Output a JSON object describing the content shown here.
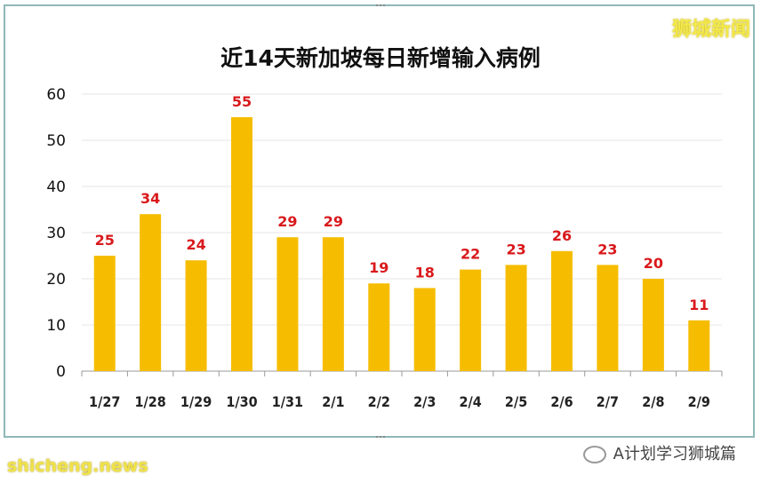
{
  "watermark_top": "狮城新闻",
  "watermark_bottom": "shicheng.news",
  "footer_source": "A计划学习狮城篇",
  "icons": {
    "source_icon": "wechat-icon"
  },
  "colors": {
    "bar": "#f6bd00",
    "data_label": "#d9191c",
    "frame": "#8fb8b8"
  },
  "chart_data": {
    "type": "bar",
    "title": "近14天新加坡每日新增输入病例",
    "categories": [
      "1/27",
      "1/28",
      "1/29",
      "1/30",
      "1/31",
      "2/1",
      "2/2",
      "2/3",
      "2/4",
      "2/5",
      "2/6",
      "2/7",
      "2/8",
      "2/9"
    ],
    "values": [
      25,
      34,
      24,
      55,
      29,
      29,
      19,
      18,
      22,
      23,
      26,
      23,
      20,
      11
    ],
    "ylim": [
      0,
      60
    ],
    "yticks": [
      0,
      10,
      20,
      30,
      40,
      50,
      60
    ],
    "xlabel": "",
    "ylabel": "",
    "grid": true,
    "legend": false
  }
}
